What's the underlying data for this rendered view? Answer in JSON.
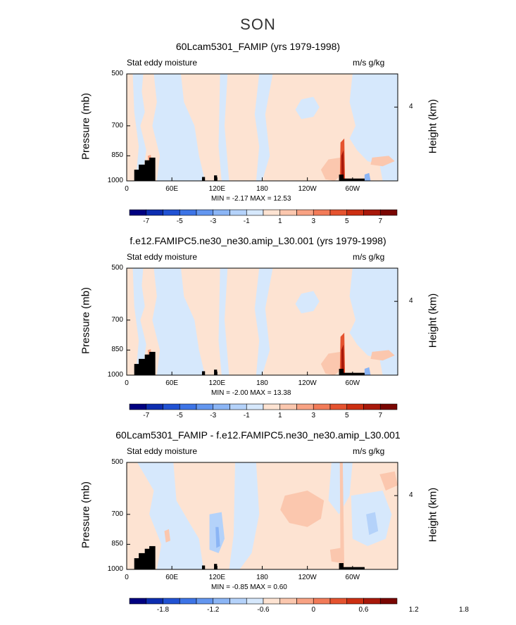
{
  "season": "SON",
  "chart_data": [
    {
      "type": "heatmap",
      "title": "60Lcam5301_FAMIP (yrs 1979-1998)",
      "left_label": "Stat eddy moisture",
      "right_label": "m/s g/kg",
      "xlabel": "",
      "ylabel": "Pressure (mb)",
      "ylabel_right": "Height (km)",
      "x_ticks": [
        "0",
        "60E",
        "120E",
        "180",
        "120W",
        "60W"
      ],
      "x_tick_values": [
        0,
        60,
        120,
        180,
        240,
        300
      ],
      "xlim": [
        0,
        360
      ],
      "y_ticks": [
        "500",
        "700",
        "850",
        "1000"
      ],
      "y_tick_values": [
        500,
        700,
        850,
        1000
      ],
      "ylim": [
        1000,
        500
      ],
      "y_right_ticks": [
        "4"
      ],
      "min_label": "MIN =  -2.17  MAX =  12.53",
      "colorbar_labels": [
        "-7",
        "-5",
        "-3",
        "-1",
        "1",
        "3",
        "5",
        "7"
      ]
    },
    {
      "type": "heatmap",
      "title": "f.e12.FAMIPC5.ne30_ne30.amip_L30.001 (yrs 1979-1998)",
      "left_label": "Stat eddy moisture",
      "right_label": "m/s g/kg",
      "xlabel": "",
      "ylabel": "Pressure (mb)",
      "ylabel_right": "Height (km)",
      "x_ticks": [
        "0",
        "60E",
        "120E",
        "180",
        "120W",
        "60W"
      ],
      "x_tick_values": [
        0,
        60,
        120,
        180,
        240,
        300
      ],
      "xlim": [
        0,
        360
      ],
      "y_ticks": [
        "500",
        "700",
        "850",
        "1000"
      ],
      "y_tick_values": [
        500,
        700,
        850,
        1000
      ],
      "ylim": [
        1000,
        500
      ],
      "y_right_ticks": [
        "4"
      ],
      "min_label": "MIN =  -2.00  MAX =  13.38",
      "colorbar_labels": [
        "-7",
        "-5",
        "-3",
        "-1",
        "1",
        "3",
        "5",
        "7"
      ]
    },
    {
      "type": "heatmap",
      "title": "60Lcam5301_FAMIP - f.e12.FAMIPC5.ne30_ne30.amip_L30.001",
      "left_label": "Stat eddy moisture",
      "right_label": "m/s g/kg",
      "xlabel": "",
      "ylabel": "Pressure (mb)",
      "ylabel_right": "Height (km)",
      "x_ticks": [
        "0",
        "60E",
        "120E",
        "180",
        "120W",
        "60W"
      ],
      "x_tick_values": [
        0,
        60,
        120,
        180,
        240,
        300
      ],
      "xlim": [
        0,
        360
      ],
      "y_ticks": [
        "500",
        "700",
        "850",
        "1000"
      ],
      "y_tick_values": [
        500,
        700,
        850,
        1000
      ],
      "ylim": [
        1000,
        500
      ],
      "y_right_ticks": [
        "4"
      ],
      "min_label": "MIN =  -0.85  MAX =  0.60",
      "colorbar_labels": [
        "-1.8",
        "-1.2",
        "-0.6",
        "0",
        "0.6",
        "1.2",
        "1.8"
      ]
    }
  ],
  "colors": {
    "palette": [
      "#000080",
      "#0d2db0",
      "#2152d3",
      "#3d74e6",
      "#6396ef",
      "#8bb5f5",
      "#b4d2fa",
      "#d6e8fc",
      "#fde3d2",
      "#fbc7ae",
      "#f8a283",
      "#f27b58",
      "#e5532f",
      "#cc2f12",
      "#a8180a",
      "#7a0602"
    ],
    "land": "#000000",
    "background": "#ffffff"
  }
}
